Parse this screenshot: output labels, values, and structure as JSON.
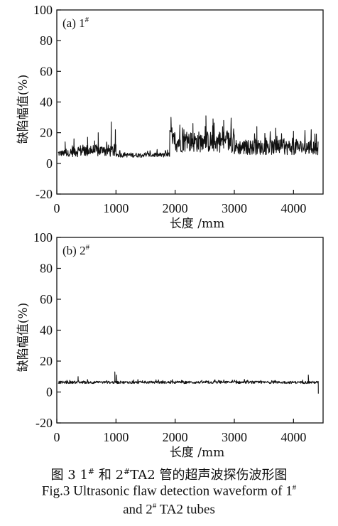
{
  "chart_data": [
    {
      "type": "line",
      "panel_label": "(a) 1",
      "panel_sup": "#",
      "xlabel": "长度 /mm",
      "ylabel": "缺陷幅值(%)",
      "xlim": [
        0,
        4500
      ],
      "ylim": [
        -20,
        100
      ],
      "xticks": [
        0,
        1000,
        2000,
        3000,
        4000
      ],
      "yticks": [
        -20,
        0,
        20,
        40,
        60,
        80,
        100
      ],
      "segments": [
        {
          "x_start": 20,
          "x_end": 250,
          "base": 6,
          "noise": 2,
          "spikes": [
            [
              140,
              14
            ]
          ]
        },
        {
          "x_start": 250,
          "x_end": 1000,
          "base": 7,
          "noise": 4,
          "spikes": [
            [
              290,
              16
            ],
            [
              520,
              17
            ],
            [
              700,
              20
            ],
            [
              920,
              27
            ],
            [
              990,
              22
            ]
          ]
        },
        {
          "x_start": 1000,
          "x_end": 1910,
          "base": 5,
          "noise": 1.5,
          "spikes": [
            [
              1150,
              7
            ],
            [
              1500,
              7
            ]
          ]
        },
        {
          "x_start": 1910,
          "x_end": 1950,
          "base": 18,
          "noise": 4,
          "spikes": [
            [
              1930,
              30
            ]
          ]
        },
        {
          "x_start": 1950,
          "x_end": 3000,
          "base": 12,
          "noise": 7,
          "spikes": [
            [
              2080,
              25
            ],
            [
              2300,
              26
            ],
            [
              2520,
              31
            ],
            [
              2640,
              29
            ],
            [
              2820,
              28
            ]
          ]
        },
        {
          "x_start": 3000,
          "x_end": 4420,
          "base": 9,
          "noise": 5,
          "spikes": [
            [
              3380,
              24
            ],
            [
              3700,
              23
            ],
            [
              4000,
              21
            ],
            [
              4300,
              22
            ]
          ]
        }
      ]
    },
    {
      "type": "line",
      "panel_label": "(b) 2",
      "panel_sup": "#",
      "xlabel": "长度 /mm",
      "ylabel": "缺陷幅值(%)",
      "xlim": [
        0,
        4500
      ],
      "ylim": [
        -20,
        100
      ],
      "xticks": [
        0,
        1000,
        2000,
        3000,
        4000
      ],
      "yticks": [
        -20,
        0,
        20,
        40,
        60,
        80,
        100
      ],
      "segments": [
        {
          "x_start": 20,
          "x_end": 4420,
          "base": 6,
          "noise": 0.8,
          "spikes": [
            [
              360,
              10
            ],
            [
              980,
              13
            ],
            [
              1010,
              11
            ],
            [
              4250,
              11
            ]
          ]
        }
      ],
      "end_drop": [
        4420,
        -1
      ]
    }
  ],
  "caption": {
    "cn_pre": "图 3  1",
    "cn_sup1": "#",
    "cn_mid": " 和 2",
    "cn_sup2": "#",
    "cn_post": "TA2 管的超声波探伤波形图",
    "en1_pre": "Fig.3  Ultrasonic flaw detection waveform of 1",
    "en1_sup": "#",
    "en2_pre": "and 2",
    "en2_sup": "#",
    "en2_post": " TA2 tubes"
  }
}
